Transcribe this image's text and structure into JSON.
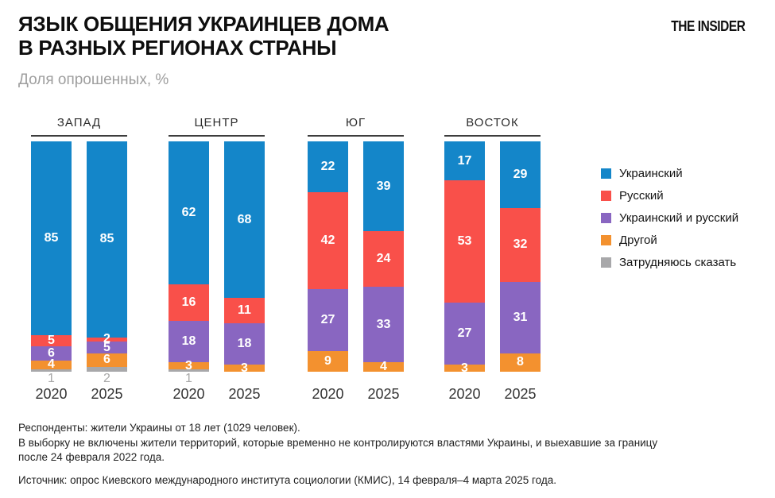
{
  "header": {
    "title_line1": "ЯЗЫК ОБЩЕНИЯ УКРАИНЦЕВ ДОМА",
    "title_line2": "В РАЗНЫХ РЕГИОНАХ СТРАНЫ",
    "subtitle": "Доля опрошенных, %",
    "brand": "THE INSIDER"
  },
  "chart_data": {
    "type": "bar",
    "stacked": true,
    "title": "Язык общения украинцев дома в разных регионах страны",
    "ylabel": "Доля опрошенных, %",
    "ylim": [
      0,
      100
    ],
    "grid": false,
    "legend_position": "right",
    "categories": [
      "2020",
      "2025"
    ],
    "series_names": [
      "Украинский",
      "Русский",
      "Украинский и русский",
      "Другой",
      "Затрудняюсь сказать"
    ],
    "colors": [
      "#1486c9",
      "#f9504a",
      "#8966c1",
      "#f3912f",
      "#a8a8aa"
    ],
    "regions": [
      {
        "name": "ЗАПАД",
        "bars": [
          {
            "year": "2020",
            "values": [
              85,
              5,
              6,
              4,
              1
            ]
          },
          {
            "year": "2025",
            "values": [
              85,
              2,
              5,
              6,
              2
            ]
          }
        ]
      },
      {
        "name": "ЦЕНТР",
        "bars": [
          {
            "year": "2020",
            "values": [
              62,
              16,
              18,
              3,
              1
            ]
          },
          {
            "year": "2025",
            "values": [
              68,
              11,
              18,
              3,
              0
            ]
          }
        ]
      },
      {
        "name": "ЮГ",
        "bars": [
          {
            "year": "2020",
            "values": [
              22,
              42,
              27,
              9,
              0
            ]
          },
          {
            "year": "2025",
            "values": [
              39,
              24,
              33,
              4,
              0
            ]
          }
        ]
      },
      {
        "name": "ВОСТОК",
        "bars": [
          {
            "year": "2020",
            "values": [
              17,
              53,
              27,
              3,
              0
            ]
          },
          {
            "year": "2025",
            "values": [
              29,
              32,
              31,
              8,
              0
            ]
          }
        ]
      }
    ],
    "legend": [
      {
        "label": "Украинский",
        "color": "#1486c9"
      },
      {
        "label": "Русский",
        "color": "#f9504a"
      },
      {
        "label": "Украинский и русский",
        "color": "#8966c1"
      },
      {
        "label": "Другой",
        "color": "#f3912f"
      },
      {
        "label": "Затрудняюсь сказать",
        "color": "#a8a8aa"
      }
    ]
  },
  "footer": {
    "notes": [
      "Респонденты: жители Украины от 18 лет (1029 человек).",
      "В выборку не включены жители территорий, которые временно не контролируются властями Украины, и выехавшие за границу",
      "после 24 февраля 2022 года."
    ],
    "source": "Источник: опрос Киевского международного института социологии (КМИС), 14 февраля–4 марта 2025 года."
  }
}
